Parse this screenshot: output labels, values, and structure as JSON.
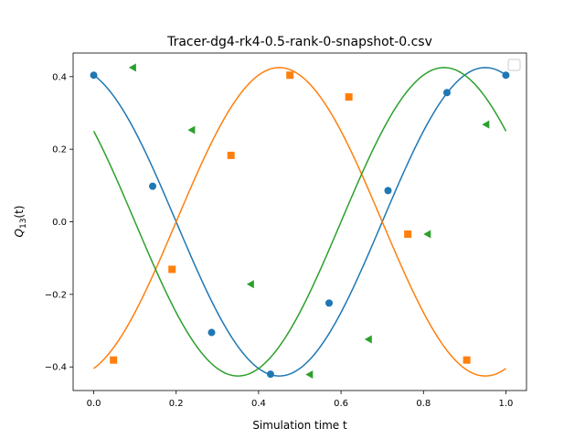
{
  "chart_data": {
    "type": "line",
    "title": "Tracer-dg4-rk4-0.5-rank-0-snapshot-0.csv",
    "xlabel": "Simulation time t",
    "ylabel_main": "Q",
    "ylabel_sub": "13",
    "ylabel_arg": "(t)",
    "xlim": [
      -0.05,
      1.05
    ],
    "ylim": [
      -0.465,
      0.465
    ],
    "x_ticks": [
      0.0,
      0.2,
      0.4,
      0.6,
      0.8,
      1.0
    ],
    "x_tick_labels": [
      "0.0",
      "0.2",
      "0.4",
      "0.6",
      "0.8",
      "1.0"
    ],
    "y_ticks": [
      -0.4,
      -0.2,
      0.0,
      0.2,
      0.4
    ],
    "y_tick_labels": [
      "−0.4",
      "−0.2",
      "0.0",
      "0.2",
      "0.4"
    ],
    "legend": "empty box, top-right",
    "grid": false,
    "series": [
      {
        "color": "#1f77b4",
        "marker": "circle",
        "curve": {
          "amplitude": 0.425,
          "frequency_cycles": 1.0,
          "phase": 0.0,
          "phase_offset_deg": 18
        },
        "marker_points": [
          {
            "x": 0.0,
            "y": 0.404
          },
          {
            "x": 0.143,
            "y": 0.098
          },
          {
            "x": 0.286,
            "y": -0.305
          },
          {
            "x": 0.429,
            "y": -0.42
          },
          {
            "x": 0.571,
            "y": -0.224
          },
          {
            "x": 0.714,
            "y": 0.086
          },
          {
            "x": 0.857,
            "y": 0.356
          },
          {
            "x": 1.0,
            "y": 0.404
          }
        ]
      },
      {
        "color": "#ff7f0e",
        "marker": "square",
        "curve": {
          "amplitude": 0.425,
          "frequency_cycles": 1.0,
          "phase_offset_deg": 198
        },
        "marker_points": [
          {
            "x": 0.048,
            "y": -0.381
          },
          {
            "x": 0.19,
            "y": -0.131
          },
          {
            "x": 0.333,
            "y": 0.183
          },
          {
            "x": 0.476,
            "y": 0.404
          },
          {
            "x": 0.619,
            "y": 0.344
          },
          {
            "x": 0.762,
            "y": -0.034
          },
          {
            "x": 0.905,
            "y": -0.381
          }
        ]
      },
      {
        "color": "#2ca02c",
        "marker": "triangle-left",
        "curve": {
          "amplitude": 0.425,
          "frequency_cycles": 1.0,
          "phase_offset_deg": 54
        },
        "marker_points": [
          {
            "x": 0.095,
            "y": 0.425
          },
          {
            "x": 0.238,
            "y": 0.253
          },
          {
            "x": 0.381,
            "y": -0.172
          },
          {
            "x": 0.524,
            "y": -0.421
          },
          {
            "x": 0.667,
            "y": -0.324
          },
          {
            "x": 0.81,
            "y": -0.034
          },
          {
            "x": 0.952,
            "y": 0.268
          }
        ]
      }
    ]
  }
}
